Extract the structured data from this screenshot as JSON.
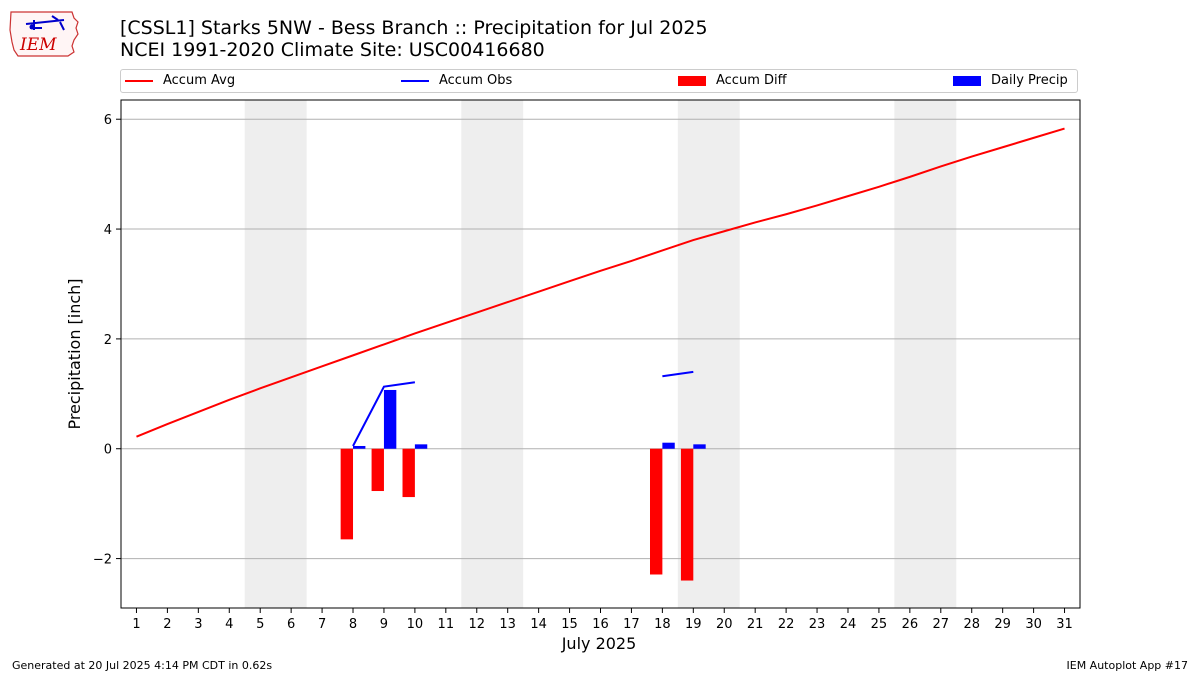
{
  "header": {
    "title_line1": "[CSSL1] Starks 5NW - Bess Branch :: Precipitation for Jul 2025",
    "title_line2": "NCEI 1991-2020 Climate Site: USC00416680",
    "logo_text": "IEM"
  },
  "footer": {
    "generated": "Generated at 20 Jul 2025 4:14 PM CDT in 0.62s",
    "app": "IEM Autoplot App #17"
  },
  "legend": {
    "placement": "top",
    "items": [
      {
        "label": "Accum Avg",
        "kind": "line",
        "color": "#ff0000"
      },
      {
        "label": "Accum Obs",
        "kind": "line",
        "color": "#0000ff"
      },
      {
        "label": "Accum Diff",
        "kind": "box",
        "color": "#ff0000"
      },
      {
        "label": "Daily Precip",
        "kind": "box",
        "color": "#0000ff"
      }
    ]
  },
  "chart_data": {
    "type": "bar",
    "title": "[CSSL1] Starks 5NW - Bess Branch :: Precipitation for Jul 2025",
    "subtitle": "NCEI 1991-2020 Climate Site: USC00416680",
    "xlabel": "July 2025",
    "ylabel": "Precipitation [inch]",
    "xlim": [
      0.5,
      31.5
    ],
    "ylim": [
      -2.9,
      6.35
    ],
    "yticks": [
      -2,
      0,
      2,
      4,
      6
    ],
    "yticklabels": [
      "−2",
      "0",
      "2",
      "4",
      "6"
    ],
    "xticks": [
      1,
      2,
      3,
      4,
      5,
      6,
      7,
      8,
      9,
      10,
      11,
      12,
      13,
      14,
      15,
      16,
      17,
      18,
      19,
      20,
      21,
      22,
      23,
      24,
      25,
      26,
      27,
      28,
      29,
      30,
      31
    ],
    "grid": "horizontal",
    "weekend_shading": [
      [
        4.5,
        6.5
      ],
      [
        11.5,
        13.5
      ],
      [
        18.5,
        20.5
      ],
      [
        25.5,
        27.5
      ]
    ],
    "series": [
      {
        "name": "Accum Avg",
        "type": "line",
        "color": "#ff0000",
        "x": [
          1,
          2,
          3,
          4,
          5,
          6,
          7,
          8,
          9,
          10,
          11,
          12,
          13,
          14,
          15,
          16,
          17,
          18,
          19,
          20,
          21,
          22,
          23,
          24,
          25,
          26,
          27,
          28,
          29,
          30,
          31
        ],
        "values": [
          0.22,
          0.45,
          0.67,
          0.89,
          1.1,
          1.3,
          1.5,
          1.7,
          1.9,
          2.1,
          2.29,
          2.48,
          2.67,
          2.86,
          3.05,
          3.24,
          3.42,
          3.61,
          3.8,
          3.96,
          4.12,
          4.27,
          4.43,
          4.6,
          4.77,
          4.95,
          5.14,
          5.32,
          5.49,
          5.66,
          5.83
        ]
      },
      {
        "name": "Accum Obs",
        "type": "line",
        "color": "#0000ff",
        "segments": [
          {
            "x": [
              8,
              9,
              10
            ],
            "values": [
              0.05,
              1.13,
              1.21
            ]
          },
          {
            "x": [
              18,
              19
            ],
            "values": [
              1.32,
              1.4
            ]
          }
        ]
      },
      {
        "name": "Accum Diff",
        "type": "bar",
        "color": "#ff0000",
        "x": [
          8,
          9,
          10,
          18,
          19
        ],
        "values": [
          -1.65,
          -0.77,
          -0.88,
          -2.29,
          -2.4
        ]
      },
      {
        "name": "Daily Precip",
        "type": "bar",
        "color": "#0000ff",
        "x": [
          8,
          9,
          10,
          18,
          19
        ],
        "values": [
          0.05,
          1.07,
          0.08,
          0.11,
          0.08
        ]
      }
    ]
  }
}
